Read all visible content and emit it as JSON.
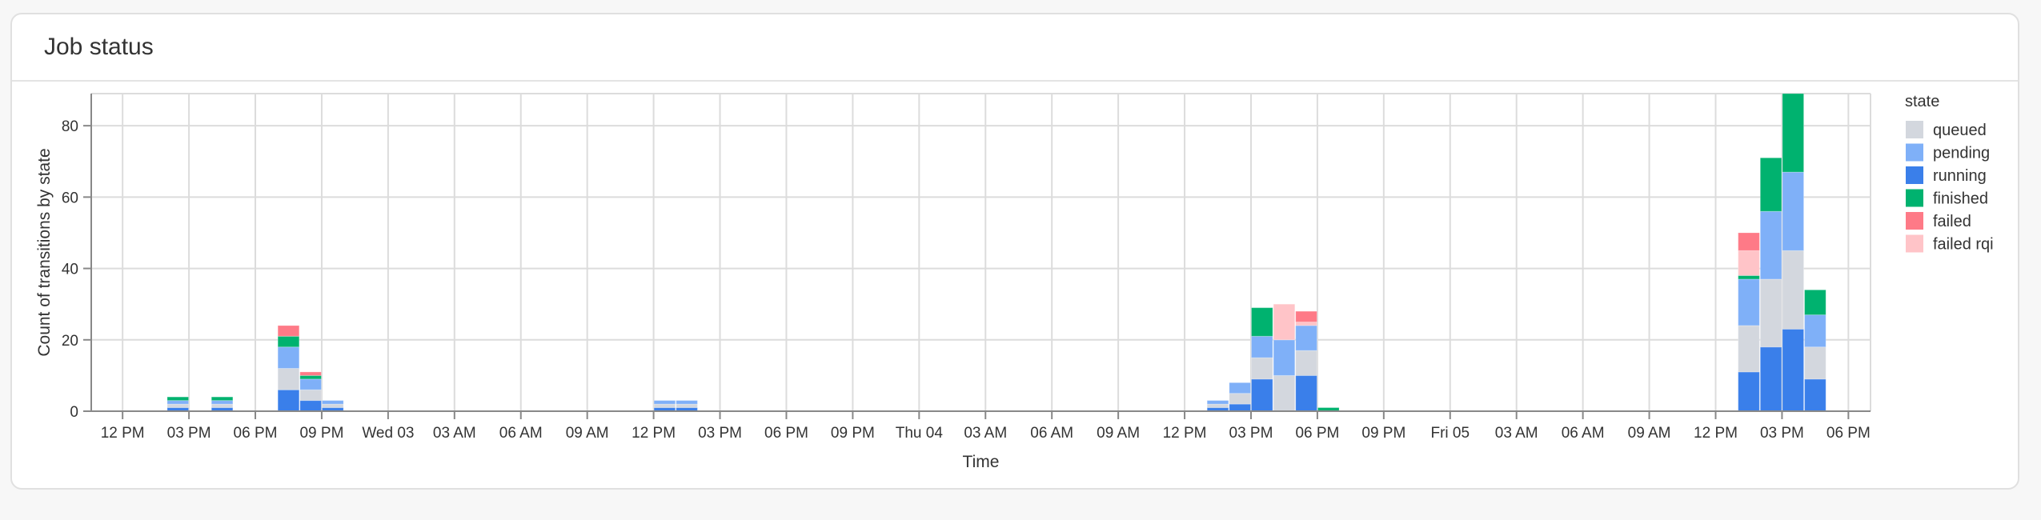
{
  "card": {
    "title": "Job status"
  },
  "chart_data": {
    "type": "bar",
    "stacked": true,
    "bin": "1 hour",
    "xlabel": "Time",
    "ylabel": "Count of transitions by state",
    "ylim": [
      0,
      89
    ],
    "yticks": [
      0,
      20,
      40,
      60,
      80
    ],
    "xlim": [
      "Tue 02 10:35",
      "Fri 05 19:00"
    ],
    "xticks": [
      "12 PM",
      "03 PM",
      "06 PM",
      "09 PM",
      "Wed 03",
      "03 AM",
      "06 AM",
      "09 AM",
      "12 PM",
      "03 PM",
      "06 PM",
      "09 PM",
      "Thu 04",
      "03 AM",
      "06 AM",
      "09 AM",
      "12 PM",
      "03 PM",
      "06 PM",
      "09 PM",
      "Fri 05",
      "03 AM",
      "06 AM",
      "09 AM",
      "12 PM",
      "03 PM",
      "06 PM"
    ],
    "grid": true,
    "legend": {
      "title": "state",
      "placement": "right"
    },
    "series": [
      {
        "name": "queued",
        "color": "#d3d7de"
      },
      {
        "name": "pending",
        "color": "#7fb0f8"
      },
      {
        "name": "running",
        "color": "#3a7fea"
      },
      {
        "name": "finished",
        "color": "#00b26f"
      },
      {
        "name": "failed",
        "color": "#fe7a87"
      },
      {
        "name": "failed rqi",
        "color": "#ffc4c8"
      }
    ],
    "stack_order": [
      "running",
      "queued",
      "pending",
      "finished",
      "failed rqi",
      "failed"
    ],
    "bins": [
      {
        "start": "Tue 02 14:00",
        "running": 1,
        "queued": 1,
        "pending": 1,
        "finished": 1
      },
      {
        "start": "Tue 02 16:00",
        "running": 1,
        "queued": 1,
        "pending": 1,
        "finished": 1
      },
      {
        "start": "Tue 02 19:00",
        "running": 6,
        "queued": 6,
        "pending": 6,
        "finished": 3,
        "failed": 3
      },
      {
        "start": "Tue 02 20:00",
        "running": 3,
        "queued": 3,
        "pending": 3,
        "finished": 1,
        "failed": 1
      },
      {
        "start": "Tue 02 21:00",
        "running": 1,
        "queued": 1,
        "pending": 1
      },
      {
        "start": "Wed 03 12:00",
        "running": 1,
        "queued": 1,
        "pending": 1
      },
      {
        "start": "Wed 03 13:00",
        "running": 1,
        "queued": 1,
        "pending": 1
      },
      {
        "start": "Thu 04 13:00",
        "running": 1,
        "queued": 1,
        "pending": 1
      },
      {
        "start": "Thu 04 14:00",
        "running": 2,
        "queued": 3,
        "pending": 3
      },
      {
        "start": "Thu 04 15:00",
        "running": 9,
        "queued": 6,
        "pending": 6,
        "finished": 8
      },
      {
        "start": "Thu 04 16:00",
        "queued": 10,
        "pending": 10,
        "failed rqi": 10
      },
      {
        "start": "Thu 04 17:00",
        "running": 10,
        "queued": 7,
        "pending": 7,
        "failed rqi": 1,
        "failed": 3
      },
      {
        "start": "Thu 04 18:00",
        "finished": 1
      },
      {
        "start": "Fri 05 13:00",
        "running": 11,
        "queued": 13,
        "pending": 13,
        "finished": 1,
        "failed rqi": 7,
        "failed": 5
      },
      {
        "start": "Fri 05 14:00",
        "running": 18,
        "queued": 19,
        "pending": 19,
        "finished": 15
      },
      {
        "start": "Fri 05 15:00",
        "running": 23,
        "queued": 22,
        "pending": 22,
        "finished": 22
      },
      {
        "start": "Fri 05 16:00",
        "running": 9,
        "queued": 9,
        "pending": 9,
        "finished": 7
      }
    ]
  }
}
